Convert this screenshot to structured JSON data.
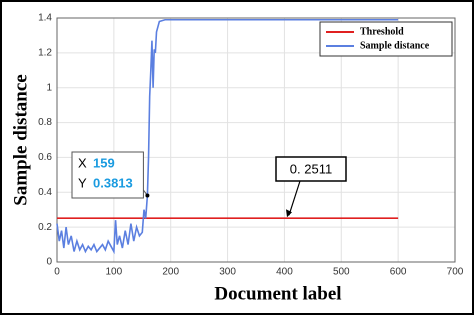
{
  "chart_data": {
    "type": "line",
    "xlabel": "Document label",
    "ylabel": "Sample distance",
    "xlim": [
      0,
      700
    ],
    "ylim": [
      0,
      1.4
    ],
    "xticks": [
      0,
      100,
      200,
      300,
      400,
      500,
      600,
      700
    ],
    "yticks": [
      0,
      0.2,
      0.4,
      0.6,
      0.8,
      1,
      1.2,
      1.4
    ],
    "grid": true,
    "legend": "upper right",
    "series": [
      {
        "name": "Threshold",
        "color": "#e02020",
        "x": [
          0,
          600
        ],
        "values": [
          0.2511,
          0.2511
        ]
      },
      {
        "name": "Sample distance",
        "color": "#5b7fe0",
        "x": [
          0,
          4,
          8,
          12,
          16,
          20,
          25,
          30,
          35,
          40,
          45,
          50,
          55,
          60,
          65,
          70,
          75,
          80,
          85,
          90,
          95,
          100,
          103,
          106,
          110,
          115,
          120,
          125,
          130,
          135,
          140,
          145,
          150,
          153,
          156,
          159,
          161,
          163,
          165,
          167,
          169,
          171,
          173,
          175,
          180,
          190,
          200,
          300,
          400,
          500,
          600
        ],
        "values": [
          0.22,
          0.12,
          0.18,
          0.08,
          0.2,
          0.1,
          0.15,
          0.06,
          0.12,
          0.07,
          0.1,
          0.06,
          0.09,
          0.07,
          0.1,
          0.06,
          0.08,
          0.1,
          0.07,
          0.12,
          0.09,
          0.06,
          0.24,
          0.1,
          0.15,
          0.08,
          0.18,
          0.1,
          0.22,
          0.12,
          0.2,
          0.15,
          0.17,
          0.3,
          0.25,
          0.3813,
          0.6,
          0.95,
          1.1,
          1.27,
          1.0,
          1.22,
          1.2,
          1.32,
          1.38,
          1.39,
          1.39,
          1.39,
          1.39,
          1.39,
          1.39
        ]
      }
    ],
    "datatip": {
      "x_label": "X",
      "x": 159,
      "y_label": "Y",
      "y": 0.3813
    },
    "callout": "0. 2511"
  }
}
